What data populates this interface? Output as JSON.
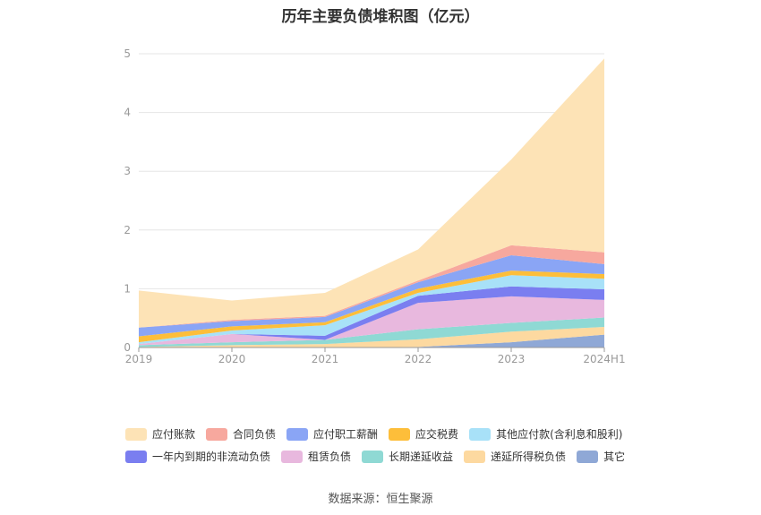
{
  "title": "历年主要负债堆积图（亿元）",
  "source": "数据来源：恒生聚源",
  "chart_data": {
    "type": "area",
    "stacked": true,
    "categories": [
      "2019",
      "2020",
      "2021",
      "2022",
      "2023",
      "2024H1"
    ],
    "ylim": [
      0,
      5
    ],
    "yticks": [
      "0",
      "1",
      "2",
      "3",
      "4",
      "5"
    ],
    "grid": true,
    "legend_position": "bottom",
    "series": [
      {
        "name": "其它",
        "color": "#8fa8d6",
        "values": [
          0.0,
          0.0,
          0.0,
          0.01,
          0.09,
          0.22
        ]
      },
      {
        "name": "递延所得税负债",
        "color": "#fdd9a0",
        "values": [
          0.01,
          0.04,
          0.06,
          0.13,
          0.18,
          0.13
        ]
      },
      {
        "name": "长期递延收益",
        "color": "#8fd9d4",
        "values": [
          0.03,
          0.05,
          0.07,
          0.17,
          0.15,
          0.16
        ]
      },
      {
        "name": "租赁负债",
        "color": "#e8b8de",
        "values": [
          0.02,
          0.14,
          0.0,
          0.45,
          0.45,
          0.3
        ]
      },
      {
        "name": "一年内到期的非流动负债",
        "color": "#7a7ef0",
        "values": [
          0.0,
          0.0,
          0.07,
          0.12,
          0.17,
          0.18
        ]
      },
      {
        "name": "其他应付款(含利息和股利)",
        "color": "#a8e1f8",
        "values": [
          0.03,
          0.06,
          0.18,
          0.05,
          0.19,
          0.18
        ]
      },
      {
        "name": "应交税费",
        "color": "#fdbe3a",
        "values": [
          0.1,
          0.07,
          0.05,
          0.07,
          0.08,
          0.08
        ]
      },
      {
        "name": "应付职工薪酬",
        "color": "#8aa5f5",
        "values": [
          0.15,
          0.09,
          0.09,
          0.11,
          0.26,
          0.17
        ]
      },
      {
        "name": "合同负债",
        "color": "#f7a89e",
        "values": [
          0.0,
          0.02,
          0.02,
          0.03,
          0.17,
          0.2
        ]
      },
      {
        "name": "应付账款",
        "color": "#fde3b6",
        "values": [
          0.63,
          0.33,
          0.39,
          0.53,
          1.46,
          3.3
        ]
      }
    ]
  },
  "legend": {
    "row1": [
      "应付账款",
      "合同负债",
      "应付职工薪酬",
      "应交税费",
      "其他应付款(含利息和股利)"
    ],
    "row2": [
      "一年内到期的非流动负债",
      "租赁负债",
      "长期递延收益",
      "递延所得税负债",
      "其它"
    ]
  }
}
